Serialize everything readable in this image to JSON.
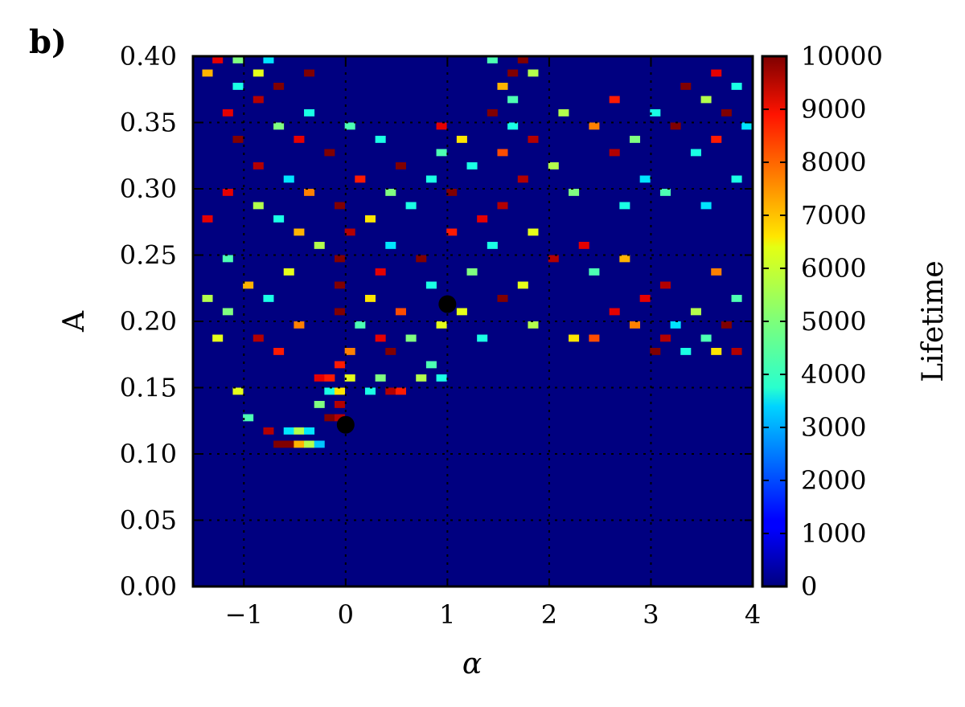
{
  "panel_label": "b)",
  "chart_data": {
    "type": "heatmap",
    "title": "",
    "xlabel": "α",
    "ylabel": "A",
    "xlim": [
      -1.5,
      4.0
    ],
    "ylim": [
      0.0,
      0.4
    ],
    "xticks": [
      -1,
      0,
      1,
      2,
      3,
      4
    ],
    "xtick_labels": [
      "−1",
      "0",
      "1",
      "2",
      "3",
      "4"
    ],
    "yticks": [
      0.0,
      0.05,
      0.1,
      0.15,
      0.2,
      0.25,
      0.3,
      0.35,
      0.4
    ],
    "ytick_labels": [
      "0.00",
      "0.05",
      "0.10",
      "0.15",
      "0.20",
      "0.25",
      "0.30",
      "0.35",
      "0.40"
    ],
    "grid": true,
    "colormap": "jet",
    "colorbar": {
      "label": "Lifetime",
      "range": [
        0,
        10000
      ],
      "ticks": [
        0,
        1000,
        2000,
        3000,
        4000,
        5000,
        6000,
        7000,
        8000,
        9000,
        10000
      ],
      "tick_labels": [
        "0",
        "1000",
        "2000",
        "3000",
        "4000",
        "5000",
        "6000",
        "7000",
        "8000",
        "9000",
        "10000"
      ]
    },
    "grid_size": {
      "nx": 56,
      "ny": 80
    },
    "background_value": 0,
    "cells": [
      {
        "alpha": -0.66,
        "A": 0.1075,
        "value": 10000
      },
      {
        "alpha": -0.56,
        "A": 0.1075,
        "value": 10000
      },
      {
        "alpha": -0.46,
        "A": 0.1075,
        "value": 7000
      },
      {
        "alpha": -0.36,
        "A": 0.1075,
        "value": 5500
      },
      {
        "alpha": -0.26,
        "A": 0.1075,
        "value": 3200
      },
      {
        "alpha": -0.76,
        "A": 0.1175,
        "value": 9500
      },
      {
        "alpha": -0.56,
        "A": 0.1175,
        "value": 3500
      },
      {
        "alpha": -0.46,
        "A": 0.1175,
        "value": 5500
      },
      {
        "alpha": -0.36,
        "A": 0.1175,
        "value": 3500
      },
      {
        "alpha": -0.16,
        "A": 0.1275,
        "value": 10000
      },
      {
        "alpha": -0.06,
        "A": 0.1275,
        "value": 9500
      },
      {
        "alpha": -0.96,
        "A": 0.1275,
        "value": 4500
      },
      {
        "alpha": -0.06,
        "A": 0.1375,
        "value": 9500
      },
      {
        "alpha": -0.26,
        "A": 0.1375,
        "value": 5000
      },
      {
        "alpha": -1.06,
        "A": 0.1475,
        "value": 6000
      },
      {
        "alpha": -0.16,
        "A": 0.1475,
        "value": 4000
      },
      {
        "alpha": -0.06,
        "A": 0.1475,
        "value": 6500
      },
      {
        "alpha": 0.24,
        "A": 0.1475,
        "value": 4000
      },
      {
        "alpha": 0.44,
        "A": 0.1475,
        "value": 9500
      },
      {
        "alpha": 0.54,
        "A": 0.1475,
        "value": 8500
      },
      {
        "alpha": -0.26,
        "A": 0.1575,
        "value": 9000
      },
      {
        "alpha": -0.16,
        "A": 0.1575,
        "value": 8500
      },
      {
        "alpha": 0.04,
        "A": 0.1575,
        "value": 6000
      },
      {
        "alpha": 0.34,
        "A": 0.1575,
        "value": 5000
      },
      {
        "alpha": 0.74,
        "A": 0.1575,
        "value": 5500
      },
      {
        "alpha": 0.94,
        "A": 0.1575,
        "value": 4000
      },
      {
        "alpha": -0.06,
        "A": 0.1675,
        "value": 8500
      },
      {
        "alpha": 0.84,
        "A": 0.1675,
        "value": 4500
      },
      {
        "alpha": -0.66,
        "A": 0.1775,
        "value": 8500
      },
      {
        "alpha": 0.04,
        "A": 0.1775,
        "value": 7500
      },
      {
        "alpha": 0.44,
        "A": 0.1775,
        "value": 10000
      },
      {
        "alpha": 3.04,
        "A": 0.1775,
        "value": 10000
      },
      {
        "alpha": 3.34,
        "A": 0.1775,
        "value": 4000
      },
      {
        "alpha": 3.64,
        "A": 0.1775,
        "value": 6500
      },
      {
        "alpha": 3.84,
        "A": 0.1775,
        "value": 9500
      },
      {
        "alpha": -1.26,
        "A": 0.1875,
        "value": 6000
      },
      {
        "alpha": -0.86,
        "A": 0.1875,
        "value": 9500
      },
      {
        "alpha": 0.34,
        "A": 0.1875,
        "value": 9000
      },
      {
        "alpha": 0.64,
        "A": 0.1875,
        "value": 5000
      },
      {
        "alpha": 1.34,
        "A": 0.1875,
        "value": 4000
      },
      {
        "alpha": 2.24,
        "A": 0.1875,
        "value": 6500
      },
      {
        "alpha": 2.44,
        "A": 0.1875,
        "value": 8000
      },
      {
        "alpha": 3.14,
        "A": 0.1875,
        "value": 9500
      },
      {
        "alpha": 3.54,
        "A": 0.1875,
        "value": 4500
      },
      {
        "alpha": -0.46,
        "A": 0.1975,
        "value": 7500
      },
      {
        "alpha": 0.14,
        "A": 0.1975,
        "value": 4500
      },
      {
        "alpha": 0.94,
        "A": 0.1975,
        "value": 6000
      },
      {
        "alpha": 1.84,
        "A": 0.1975,
        "value": 5500
      },
      {
        "alpha": 2.84,
        "A": 0.1975,
        "value": 7500
      },
      {
        "alpha": 3.24,
        "A": 0.1975,
        "value": 3500
      },
      {
        "alpha": 3.74,
        "A": 0.1975,
        "value": 10000
      },
      {
        "alpha": -1.16,
        "A": 0.2075,
        "value": 5000
      },
      {
        "alpha": -0.06,
        "A": 0.2075,
        "value": 10000
      },
      {
        "alpha": 0.54,
        "A": 0.2075,
        "value": 8000
      },
      {
        "alpha": 1.14,
        "A": 0.2075,
        "value": 6000
      },
      {
        "alpha": 2.64,
        "A": 0.2075,
        "value": 9000
      },
      {
        "alpha": 3.44,
        "A": 0.2075,
        "value": 5500
      },
      {
        "alpha": -1.36,
        "A": 0.2175,
        "value": 5500
      },
      {
        "alpha": -0.76,
        "A": 0.2175,
        "value": 4000
      },
      {
        "alpha": 0.24,
        "A": 0.2175,
        "value": 6500
      },
      {
        "alpha": 1.54,
        "A": 0.2175,
        "value": 10000
      },
      {
        "alpha": 2.94,
        "A": 0.2175,
        "value": 9000
      },
      {
        "alpha": 3.84,
        "A": 0.2175,
        "value": 4500
      },
      {
        "alpha": -0.96,
        "A": 0.2275,
        "value": 7000
      },
      {
        "alpha": -0.06,
        "A": 0.2275,
        "value": 10000
      },
      {
        "alpha": 0.84,
        "A": 0.2275,
        "value": 4000
      },
      {
        "alpha": 1.74,
        "A": 0.2275,
        "value": 6000
      },
      {
        "alpha": 3.14,
        "A": 0.2275,
        "value": 9500
      },
      {
        "alpha": -0.56,
        "A": 0.2375,
        "value": 6000
      },
      {
        "alpha": 0.34,
        "A": 0.2375,
        "value": 9000
      },
      {
        "alpha": 1.24,
        "A": 0.2375,
        "value": 5000
      },
      {
        "alpha": 2.44,
        "A": 0.2375,
        "value": 4500
      },
      {
        "alpha": 3.64,
        "A": 0.2375,
        "value": 7500
      },
      {
        "alpha": -1.16,
        "A": 0.2475,
        "value": 4500
      },
      {
        "alpha": -0.06,
        "A": 0.2475,
        "value": 10000
      },
      {
        "alpha": 0.74,
        "A": 0.2475,
        "value": 10000
      },
      {
        "alpha": 2.04,
        "A": 0.2475,
        "value": 9500
      },
      {
        "alpha": 2.74,
        "A": 0.2475,
        "value": 7000
      },
      {
        "alpha": -0.26,
        "A": 0.2575,
        "value": 5500
      },
      {
        "alpha": 0.44,
        "A": 0.2575,
        "value": 3500
      },
      {
        "alpha": 1.44,
        "A": 0.2575,
        "value": 4000
      },
      {
        "alpha": 2.34,
        "A": 0.2575,
        "value": 9000
      },
      {
        "alpha": -0.46,
        "A": 0.2675,
        "value": 7000
      },
      {
        "alpha": 0.04,
        "A": 0.2675,
        "value": 9500
      },
      {
        "alpha": 1.04,
        "A": 0.2675,
        "value": 8500
      },
      {
        "alpha": 1.84,
        "A": 0.2675,
        "value": 6000
      },
      {
        "alpha": -1.36,
        "A": 0.2775,
        "value": 9000
      },
      {
        "alpha": -0.66,
        "A": 0.2775,
        "value": 4000
      },
      {
        "alpha": 0.24,
        "A": 0.2775,
        "value": 6500
      },
      {
        "alpha": 1.34,
        "A": 0.2775,
        "value": 9000
      },
      {
        "alpha": -0.86,
        "A": 0.2875,
        "value": 5500
      },
      {
        "alpha": -0.06,
        "A": 0.2875,
        "value": 10000
      },
      {
        "alpha": 0.64,
        "A": 0.2875,
        "value": 4000
      },
      {
        "alpha": 1.54,
        "A": 0.2875,
        "value": 9500
      },
      {
        "alpha": 2.74,
        "A": 0.2875,
        "value": 4000
      },
      {
        "alpha": 3.54,
        "A": 0.2875,
        "value": 3500
      },
      {
        "alpha": -1.16,
        "A": 0.2975,
        "value": 9000
      },
      {
        "alpha": -0.36,
        "A": 0.2975,
        "value": 7500
      },
      {
        "alpha": 0.44,
        "A": 0.2975,
        "value": 5000
      },
      {
        "alpha": 1.04,
        "A": 0.2975,
        "value": 10000
      },
      {
        "alpha": 2.24,
        "A": 0.2975,
        "value": 5000
      },
      {
        "alpha": 3.14,
        "A": 0.2975,
        "value": 4500
      },
      {
        "alpha": -0.56,
        "A": 0.3075,
        "value": 3500
      },
      {
        "alpha": 0.14,
        "A": 0.3075,
        "value": 8500
      },
      {
        "alpha": 0.84,
        "A": 0.3075,
        "value": 4000
      },
      {
        "alpha": 1.74,
        "A": 0.3075,
        "value": 9500
      },
      {
        "alpha": 2.94,
        "A": 0.3075,
        "value": 3500
      },
      {
        "alpha": 3.84,
        "A": 0.3075,
        "value": 4000
      },
      {
        "alpha": -0.86,
        "A": 0.3175,
        "value": 9500
      },
      {
        "alpha": 0.54,
        "A": 0.3175,
        "value": 10000
      },
      {
        "alpha": 1.24,
        "A": 0.3175,
        "value": 4000
      },
      {
        "alpha": 2.04,
        "A": 0.3175,
        "value": 5500
      },
      {
        "alpha": -0.16,
        "A": 0.3275,
        "value": 10000
      },
      {
        "alpha": 0.94,
        "A": 0.3275,
        "value": 4500
      },
      {
        "alpha": 1.54,
        "A": 0.3275,
        "value": 8000
      },
      {
        "alpha": 2.64,
        "A": 0.3275,
        "value": 9500
      },
      {
        "alpha": 3.44,
        "A": 0.3275,
        "value": 4000
      },
      {
        "alpha": -1.06,
        "A": 0.3375,
        "value": 10000
      },
      {
        "alpha": -0.46,
        "A": 0.3375,
        "value": 9000
      },
      {
        "alpha": 0.34,
        "A": 0.3375,
        "value": 4000
      },
      {
        "alpha": 1.14,
        "A": 0.3375,
        "value": 6500
      },
      {
        "alpha": 1.84,
        "A": 0.3375,
        "value": 9500
      },
      {
        "alpha": 2.84,
        "A": 0.3375,
        "value": 5000
      },
      {
        "alpha": 3.64,
        "A": 0.3375,
        "value": 8500
      },
      {
        "alpha": -0.66,
        "A": 0.3475,
        "value": 5000
      },
      {
        "alpha": 0.04,
        "A": 0.3475,
        "value": 4500
      },
      {
        "alpha": 0.94,
        "A": 0.3475,
        "value": 9000
      },
      {
        "alpha": 1.64,
        "A": 0.3475,
        "value": 4000
      },
      {
        "alpha": 2.44,
        "A": 0.3475,
        "value": 7500
      },
      {
        "alpha": 3.24,
        "A": 0.3475,
        "value": 10000
      },
      {
        "alpha": 3.94,
        "A": 0.3475,
        "value": 3500
      },
      {
        "alpha": -1.16,
        "A": 0.3575,
        "value": 9000
      },
      {
        "alpha": -0.36,
        "A": 0.3575,
        "value": 4000
      },
      {
        "alpha": 1.44,
        "A": 0.3575,
        "value": 10000
      },
      {
        "alpha": 2.14,
        "A": 0.3575,
        "value": 5500
      },
      {
        "alpha": 3.04,
        "A": 0.3575,
        "value": 4000
      },
      {
        "alpha": 3.74,
        "A": 0.3575,
        "value": 10000
      },
      {
        "alpha": -0.86,
        "A": 0.3675,
        "value": 9500
      },
      {
        "alpha": 1.64,
        "A": 0.3675,
        "value": 4500
      },
      {
        "alpha": 2.64,
        "A": 0.3675,
        "value": 8500
      },
      {
        "alpha": 3.54,
        "A": 0.3675,
        "value": 5500
      },
      {
        "alpha": -1.06,
        "A": 0.3775,
        "value": 4000
      },
      {
        "alpha": -0.66,
        "A": 0.3775,
        "value": 10000
      },
      {
        "alpha": 1.54,
        "A": 0.3775,
        "value": 7000
      },
      {
        "alpha": 3.34,
        "A": 0.3775,
        "value": 10000
      },
      {
        "alpha": 3.84,
        "A": 0.3775,
        "value": 4000
      },
      {
        "alpha": -1.36,
        "A": 0.3875,
        "value": 7000
      },
      {
        "alpha": -0.86,
        "A": 0.3875,
        "value": 6000
      },
      {
        "alpha": -0.36,
        "A": 0.3875,
        "value": 10000
      },
      {
        "alpha": 1.64,
        "A": 0.3875,
        "value": 10000
      },
      {
        "alpha": 1.84,
        "A": 0.3875,
        "value": 5500
      },
      {
        "alpha": 3.64,
        "A": 0.3875,
        "value": 9000
      },
      {
        "alpha": -1.26,
        "A": 0.3975,
        "value": 9000
      },
      {
        "alpha": -1.06,
        "A": 0.3975,
        "value": 5000
      },
      {
        "alpha": -0.76,
        "A": 0.3975,
        "value": 3500
      },
      {
        "alpha": 1.74,
        "A": 0.3975,
        "value": 10000
      },
      {
        "alpha": 1.44,
        "A": 0.3975,
        "value": 4500
      }
    ],
    "markers": [
      {
        "alpha": 0.0,
        "A": 0.122
      },
      {
        "alpha": 1.0,
        "A": 0.213
      }
    ]
  }
}
